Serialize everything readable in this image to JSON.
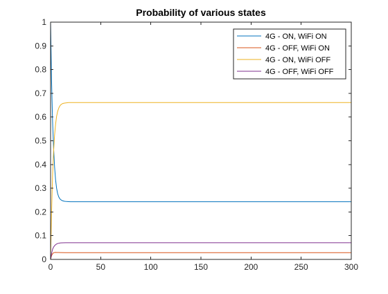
{
  "chart_data": {
    "type": "line",
    "title": "Probability of various states",
    "xlabel": "",
    "ylabel": "",
    "xlim": [
      0,
      300
    ],
    "ylim": [
      0,
      1
    ],
    "xticks": [
      0,
      50,
      100,
      150,
      200,
      250,
      300
    ],
    "yticks": [
      0,
      0.1,
      0.2,
      0.3,
      0.4,
      0.5,
      0.6,
      0.7,
      0.8,
      0.9,
      1
    ],
    "xtick_labels": [
      "0",
      "50",
      "100",
      "150",
      "200",
      "250",
      "300"
    ],
    "ytick_labels": [
      "0",
      "0.1",
      "0.2",
      "0.3",
      "0.4",
      "0.5",
      "0.6",
      "0.7",
      "0.8",
      "0.9",
      "1"
    ],
    "grid": false,
    "legend_position": "top-right",
    "series": [
      {
        "name": "4G - ON, WiFi ON",
        "color": "#0072BD",
        "x": [
          0,
          1,
          2,
          3,
          4,
          5,
          6,
          7,
          8,
          9,
          10,
          12,
          14,
          16,
          18,
          20,
          25,
          30,
          300
        ],
        "y": [
          1,
          0.75,
          0.58,
          0.47,
          0.39,
          0.335,
          0.3,
          0.278,
          0.265,
          0.257,
          0.252,
          0.247,
          0.245,
          0.244,
          0.2435,
          0.243,
          0.243,
          0.243,
          0.243
        ]
      },
      {
        "name": "4G - OFF, WiFi ON",
        "color": "#D95319",
        "x": [
          0,
          1,
          2,
          3,
          4,
          5,
          6,
          8,
          10,
          15,
          20,
          300
        ],
        "y": [
          0,
          0.016,
          0.024,
          0.028,
          0.029,
          0.0295,
          0.0293,
          0.029,
          0.0288,
          0.0286,
          0.0285,
          0.0285
        ]
      },
      {
        "name": "4G - ON, WiFi OFF",
        "color": "#EDB120",
        "x": [
          0,
          1,
          2,
          3,
          4,
          5,
          6,
          7,
          8,
          9,
          10,
          12,
          14,
          16,
          18,
          20,
          25,
          30,
          300
        ],
        "y": [
          0,
          0.2,
          0.355,
          0.455,
          0.525,
          0.57,
          0.603,
          0.623,
          0.636,
          0.645,
          0.651,
          0.657,
          0.659,
          0.66,
          0.661,
          0.661,
          0.661,
          0.661,
          0.661
        ]
      },
      {
        "name": "4G - OFF, WiFi OFF",
        "color": "#7E2F8E",
        "x": [
          0,
          1,
          2,
          3,
          4,
          5,
          6,
          7,
          8,
          9,
          10,
          12,
          15,
          20,
          300
        ],
        "y": [
          0,
          0.025,
          0.043,
          0.052,
          0.058,
          0.062,
          0.065,
          0.067,
          0.068,
          0.069,
          0.0695,
          0.07,
          0.0705,
          0.0705,
          0.0705
        ]
      }
    ]
  }
}
